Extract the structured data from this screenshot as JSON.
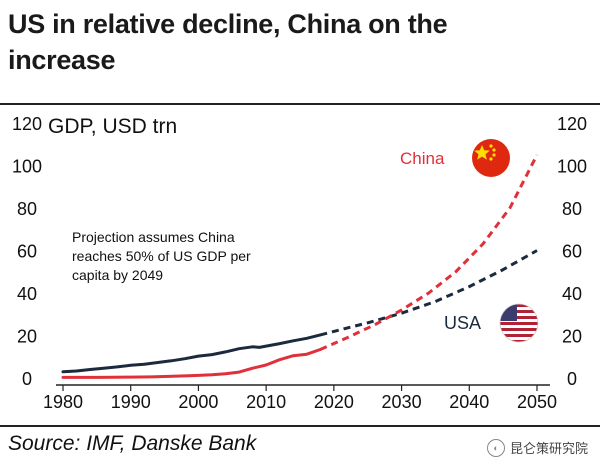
{
  "header": {
    "title_line1": "US in relative decline, China on the",
    "title_line2": "increase"
  },
  "footer": {
    "source": "Source: IMF, Danske Bank",
    "watermark": "昆仑策研究院"
  },
  "colors": {
    "us": "#1c2a3e",
    "china": "#e0303a",
    "axis": "#222222",
    "text": "#111111"
  },
  "chart_data": {
    "type": "line",
    "ylabel": "GDP, USD trn",
    "annotation": "Projection assumes China reaches 50% of US GDP per capita by 2049",
    "annotation_lines": [
      "Projection assumes China",
      "reaches 50% of US GDP per",
      "capita by 2049"
    ],
    "xlim": [
      1980,
      2050
    ],
    "ylim": [
      0,
      120
    ],
    "x_ticks": [
      1980,
      1990,
      2000,
      2010,
      2020,
      2030,
      2040,
      2050
    ],
    "y_ticks": [
      0,
      20,
      40,
      60,
      80,
      100,
      120
    ],
    "grid": false,
    "series": [
      {
        "name": "US",
        "label": "USA",
        "color": "#1c2a3e",
        "historical": [
          [
            1980,
            2.9
          ],
          [
            1982,
            3.3
          ],
          [
            1984,
            4.0
          ],
          [
            1986,
            4.6
          ],
          [
            1988,
            5.2
          ],
          [
            1990,
            6.0
          ],
          [
            1992,
            6.5
          ],
          [
            1994,
            7.3
          ],
          [
            1996,
            8.1
          ],
          [
            1998,
            9.1
          ],
          [
            2000,
            10.3
          ],
          [
            2002,
            11.0
          ],
          [
            2004,
            12.3
          ],
          [
            2006,
            13.8
          ],
          [
            2008,
            14.7
          ],
          [
            2009,
            14.4
          ],
          [
            2010,
            15.0
          ],
          [
            2012,
            16.2
          ],
          [
            2014,
            17.5
          ],
          [
            2016,
            18.7
          ],
          [
            2018,
            20.3
          ]
        ],
        "projection": [
          [
            2018,
            20.3
          ],
          [
            2025,
            26
          ],
          [
            2030,
            30.5
          ],
          [
            2035,
            36
          ],
          [
            2040,
            43
          ],
          [
            2045,
            51
          ],
          [
            2050,
            60
          ]
        ]
      },
      {
        "name": "China",
        "label": "China",
        "color": "#e0303a",
        "historical": [
          [
            1980,
            0.3
          ],
          [
            1985,
            0.3
          ],
          [
            1990,
            0.4
          ],
          [
            1993,
            0.5
          ],
          [
            1995,
            0.7
          ],
          [
            1998,
            1.0
          ],
          [
            2000,
            1.2
          ],
          [
            2002,
            1.5
          ],
          [
            2004,
            2.0
          ],
          [
            2006,
            2.8
          ],
          [
            2008,
            4.6
          ],
          [
            2010,
            6.1
          ],
          [
            2012,
            8.6
          ],
          [
            2014,
            10.5
          ],
          [
            2016,
            11.2
          ],
          [
            2018,
            13.4
          ]
        ],
        "projection": [
          [
            2018,
            13.4
          ],
          [
            2022,
            19
          ],
          [
            2026,
            25
          ],
          [
            2030,
            32
          ],
          [
            2034,
            40
          ],
          [
            2038,
            50
          ],
          [
            2042,
            63
          ],
          [
            2046,
            80
          ],
          [
            2050,
            105
          ]
        ]
      }
    ]
  }
}
